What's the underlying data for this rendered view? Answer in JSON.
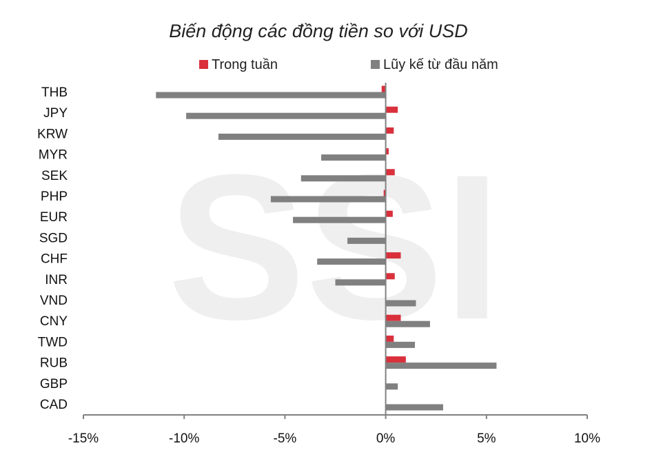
{
  "chart_data": {
    "type": "bar",
    "orientation": "horizontal",
    "title": "Biến động các đồng tiền so với USD",
    "watermark": "SSI",
    "categories": [
      "THB",
      "JPY",
      "KRW",
      "MYR",
      "SEK",
      "PHP",
      "EUR",
      "SGD",
      "CHF",
      "INR",
      "VND",
      "CNY",
      "TWD",
      "RUB",
      "GBP",
      "CAD"
    ],
    "series": [
      {
        "name": "Trong tuần",
        "color": "#d9303c",
        "values": [
          -0.2,
          0.6,
          0.4,
          0.15,
          0.45,
          -0.1,
          0.35,
          0.0,
          0.75,
          0.45,
          0.0,
          0.75,
          0.4,
          1.0,
          0.0,
          0.0
        ]
      },
      {
        "name": "Lũy kế từ đầu năm",
        "color": "#808080",
        "values": [
          -11.4,
          -9.9,
          -8.3,
          -3.2,
          -4.2,
          -5.7,
          -4.6,
          -1.9,
          -3.4,
          -2.5,
          1.5,
          2.2,
          1.45,
          5.5,
          0.6,
          2.85
        ]
      }
    ],
    "xlim": [
      -15,
      10
    ],
    "xticks": [
      -15,
      -10,
      -5,
      0,
      5,
      10
    ],
    "xtick_labels": [
      "-15%",
      "-10%",
      "-5%",
      "0%",
      "5%",
      "10%"
    ],
    "legend_position": "top",
    "grid": false
  }
}
